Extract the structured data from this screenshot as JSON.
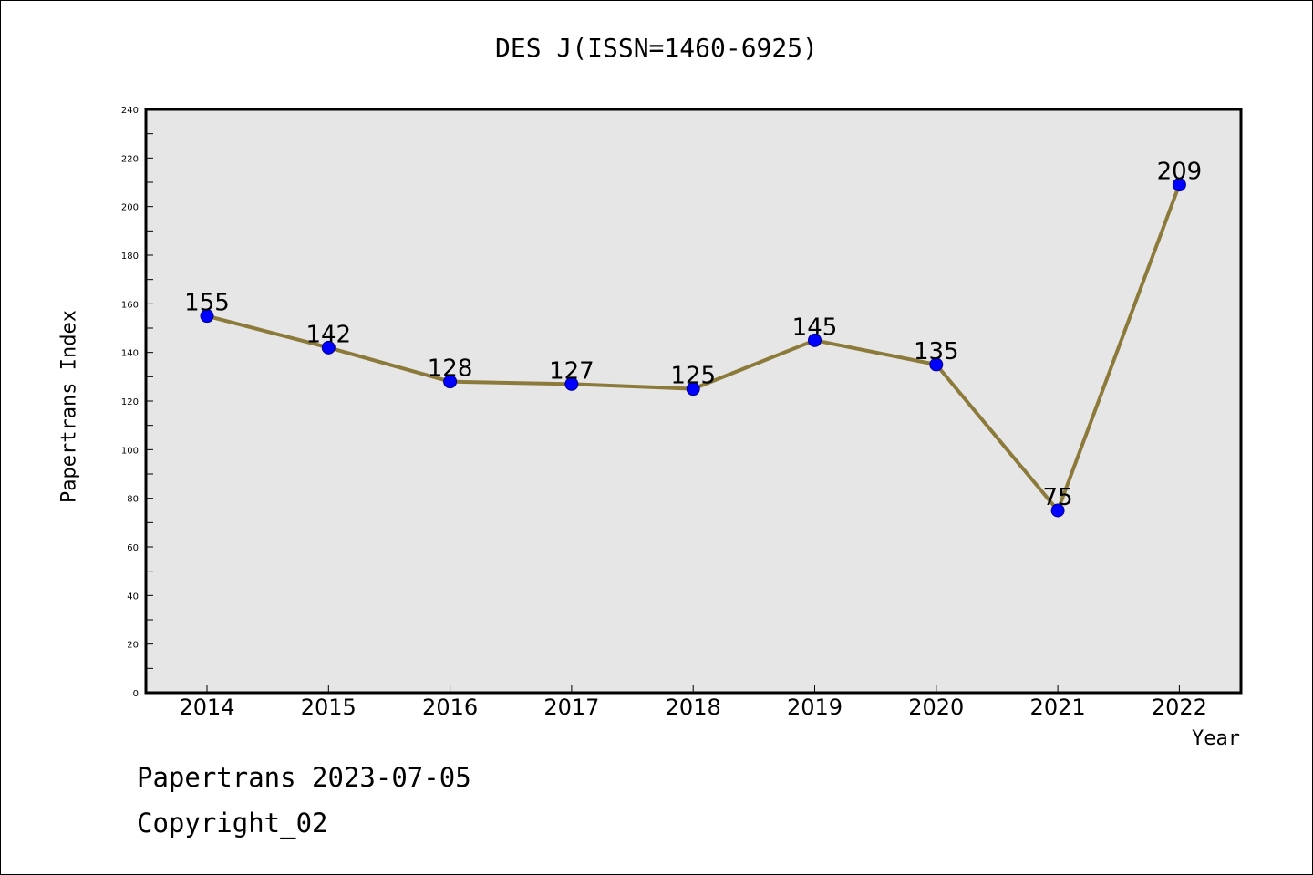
{
  "chart_data": {
    "type": "line",
    "title": "DES J(ISSN=1460-6925)",
    "xlabel": "Year",
    "ylabel": "Papertrans Index",
    "categories": [
      "2014",
      "2015",
      "2016",
      "2017",
      "2018",
      "2019",
      "2020",
      "2021",
      "2022"
    ],
    "series": [
      {
        "values": [
          155,
          142,
          128,
          127,
          125,
          145,
          135,
          75,
          209
        ]
      }
    ],
    "ylim": [
      0,
      240
    ],
    "y_ticks": [
      0,
      20,
      40,
      60,
      80,
      100,
      120,
      140,
      160,
      180,
      200,
      220,
      240
    ],
    "grid": false,
    "line_color": "#8b7a3a",
    "marker_color": "#0000ff",
    "plot_background": "#e6e6e6"
  },
  "footer": {
    "line1": "Papertrans 2023-07-05",
    "line2": "Copyright_02"
  }
}
